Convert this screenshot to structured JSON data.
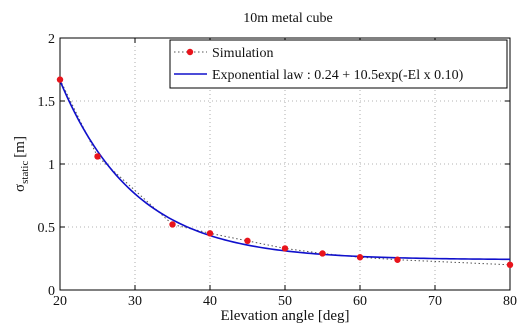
{
  "chart_data": {
    "type": "line",
    "title": "10m metal cube",
    "xlabel": "Elevation angle [deg]",
    "ylabel_main": "σ",
    "ylabel_sub": "static",
    "ylabel_unit": "[m]",
    "xlim": [
      20,
      80
    ],
    "ylim": [
      0,
      2
    ],
    "xticks": [
      20,
      30,
      40,
      50,
      60,
      70,
      80
    ],
    "yticks": [
      0,
      0.5,
      1,
      1.5,
      2
    ],
    "ytick_labels": [
      "0",
      "0.5",
      "1",
      "1.5",
      "2"
    ],
    "grid": true,
    "legend_position": "top-right",
    "series": [
      {
        "name": "Simulation",
        "style": "dotted-with-markers",
        "color": "#e8141c",
        "line_color": "#555555",
        "x": [
          20,
          25,
          35,
          40,
          45,
          50,
          55,
          60,
          65,
          80
        ],
        "y": [
          1.67,
          1.06,
          0.52,
          0.45,
          0.39,
          0.33,
          0.29,
          0.26,
          0.24,
          0.2
        ]
      },
      {
        "name": "Exponential law : 0.24 + 10.5exp(-El x 0.10)",
        "style": "solid",
        "color": "#1010cc",
        "model": {
          "a": 0.24,
          "b": 10.5,
          "k": 0.1
        }
      }
    ]
  }
}
